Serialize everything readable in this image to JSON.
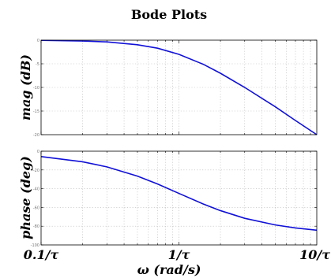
{
  "chart_data": [
    {
      "type": "line",
      "title": "Bode Plots",
      "ylabel": "mag (dB)",
      "xscale": "log",
      "xlim": [
        0.1,
        10
      ],
      "ylim": [
        -20,
        0
      ],
      "yticks": [
        0,
        -5,
        -10,
        -15,
        -20
      ],
      "grid": true,
      "series": [
        {
          "x": [
            0.1,
            0.2,
            0.3,
            0.5,
            0.7,
            1.0,
            1.5,
            2,
            3,
            5,
            7,
            10
          ],
          "y": [
            -0.04,
            -0.17,
            -0.37,
            -0.97,
            -1.7,
            -3.0,
            -5.1,
            -7.0,
            -10.0,
            -14.1,
            -17.0,
            -20.0
          ]
        }
      ]
    },
    {
      "type": "line",
      "ylabel": "phase (deg)",
      "xlabel": "ω (rad/s)",
      "xscale": "log",
      "xlim": [
        0.1,
        10
      ],
      "ylim": [
        -100,
        0
      ],
      "yticks": [
        0,
        -20,
        -40,
        -60,
        -80,
        -100
      ],
      "xtick_labels": [
        "0.1/τ",
        "1/τ",
        "10/τ"
      ],
      "xtick_values": [
        0.1,
        1,
        10
      ],
      "grid": true,
      "series": [
        {
          "x": [
            0.1,
            0.2,
            0.3,
            0.5,
            0.7,
            1.0,
            1.5,
            2,
            3,
            5,
            7,
            10
          ],
          "y": [
            -5.7,
            -11.3,
            -16.7,
            -26.6,
            -35.0,
            -45.0,
            -56.3,
            -63.4,
            -71.6,
            -78.7,
            -81.9,
            -84.3
          ]
        }
      ]
    }
  ]
}
